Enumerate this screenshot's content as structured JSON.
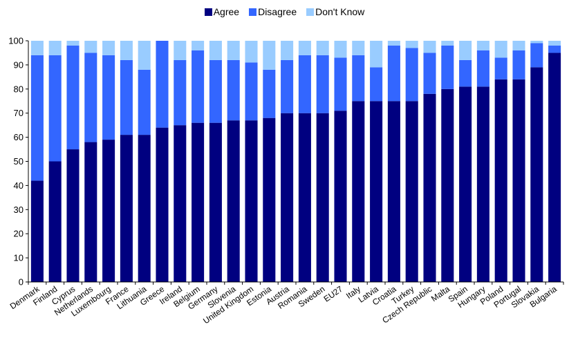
{
  "chart_data": {
    "type": "bar",
    "stacked": true,
    "categories": [
      "Denmark",
      "Finland",
      "Cyprus",
      "Netherlands",
      "Luxembourg",
      "France",
      "Lithuania",
      "Greece",
      "Ireland",
      "Belgium",
      "Germany",
      "Slovenia",
      "United Kingdom",
      "Estonia",
      "Austria",
      "Romania",
      "Sweden",
      "EU27",
      "Italy",
      "Latvia",
      "Croatia",
      "Turkey",
      "Czech Republic",
      "Malta",
      "Spain",
      "Hungary",
      "Poland",
      "Portugal",
      "Slovakia",
      "Bulgaria"
    ],
    "series": [
      {
        "name": "Agree",
        "color": "#000080",
        "values": [
          42,
          50,
          55,
          58,
          59,
          61,
          61,
          64,
          65,
          66,
          66,
          67,
          67,
          68,
          70,
          70,
          70,
          71,
          75,
          75,
          75,
          75,
          78,
          80,
          81,
          81,
          84,
          84,
          89,
          95
        ]
      },
      {
        "name": "Disagree",
        "color": "#3366ff",
        "values": [
          52,
          44,
          43,
          37,
          35,
          31,
          27,
          36,
          27,
          30,
          26,
          25,
          24,
          20,
          22,
          24,
          24,
          22,
          19,
          14,
          23,
          22,
          17,
          18,
          11,
          15,
          9,
          12,
          10,
          3
        ]
      },
      {
        "name": "Don't Know",
        "color": "#99ccff",
        "values": [
          6,
          6,
          2,
          5,
          6,
          8,
          12,
          0,
          8,
          4,
          8,
          8,
          9,
          12,
          8,
          6,
          6,
          7,
          6,
          11,
          2,
          3,
          5,
          2,
          8,
          4,
          7,
          4,
          1,
          2
        ]
      }
    ],
    "xlabel": "",
    "ylabel": "",
    "ylim": [
      0,
      100
    ],
    "yticks": [
      0,
      10,
      20,
      30,
      40,
      50,
      60,
      70,
      80,
      90,
      100
    ],
    "grid": false,
    "legend_position": "top-center"
  }
}
